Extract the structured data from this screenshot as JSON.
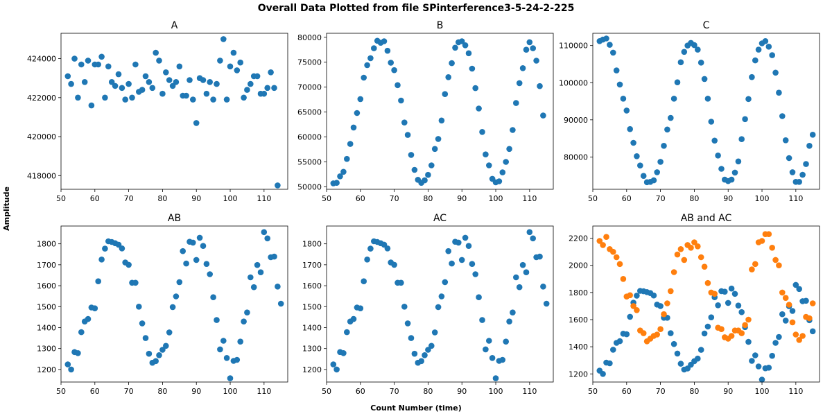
{
  "figure": {
    "suptitle": "Overall Data Plotted from file SPinterference3-5-24-2-225",
    "xlabel": "Count Number (time)",
    "ylabel": "Amplitude"
  },
  "colors": {
    "series1": "#1f77b4",
    "series2": "#ff7f0e"
  },
  "chart_data": [
    {
      "type": "scatter",
      "title": "A",
      "xlim": [
        50,
        117
      ],
      "ylim": [
        417300,
        425300
      ],
      "xticks": [
        50,
        60,
        70,
        80,
        90,
        100,
        110
      ],
      "yticks": [
        418000,
        420000,
        422000,
        424000
      ],
      "series": [
        {
          "color": "#1f77b4",
          "x": [
            52,
            53,
            54,
            55,
            56,
            57,
            58,
            59,
            60,
            61,
            62,
            63,
            64,
            65,
            66,
            67,
            68,
            69,
            70,
            71,
            72,
            73,
            74,
            75,
            76,
            77,
            78,
            79,
            80,
            81,
            82,
            83,
            84,
            85,
            86,
            87,
            88,
            89,
            90,
            91,
            92,
            93,
            94,
            95,
            96,
            97,
            98,
            99,
            100,
            101,
            102,
            103,
            104,
            105,
            106,
            107,
            108,
            109,
            110,
            111,
            112,
            113,
            114,
            115
          ],
          "y": [
            423100,
            422700,
            424000,
            422000,
            423700,
            422800,
            423900,
            421600,
            423700,
            423700,
            424100,
            422000,
            423600,
            422800,
            422600,
            423200,
            422500,
            421900,
            422700,
            422000,
            423700,
            422300,
            422400,
            423100,
            422800,
            422500,
            424300,
            423900,
            422200,
            423300,
            422900,
            422600,
            422800,
            423600,
            422100,
            422100,
            422900,
            421900,
            420700,
            423000,
            422900,
            422200,
            422800,
            421900,
            422700,
            423900,
            425000,
            421900,
            423600,
            424300,
            423400,
            423800,
            422000,
            422400,
            422700,
            423100,
            423100,
            422200,
            422200,
            422500,
            423300,
            422500,
            417500,
            null
          ]
        }
      ]
    },
    {
      "type": "scatter",
      "title": "B",
      "xlim": [
        50,
        117
      ],
      "ylim": [
        49500,
        80800
      ],
      "xticks": [
        50,
        60,
        70,
        80,
        90,
        100,
        110
      ],
      "yticks": [
        50000,
        55000,
        60000,
        65000,
        70000,
        75000,
        80000
      ],
      "series": [
        {
          "color": "#1f77b4",
          "x": [
            52,
            53,
            54,
            55,
            56,
            57,
            58,
            59,
            60,
            61,
            62,
            63,
            64,
            65,
            66,
            67,
            68,
            69,
            70,
            71,
            72,
            73,
            74,
            75,
            76,
            77,
            78,
            79,
            80,
            81,
            82,
            83,
            84,
            85,
            86,
            87,
            88,
            89,
            90,
            91,
            92,
            93,
            94,
            95,
            96,
            97,
            98,
            99,
            100,
            101,
            102,
            103,
            104,
            105,
            106,
            107,
            108,
            109,
            110,
            111,
            112,
            113,
            114,
            115
          ],
          "y": [
            50700,
            50800,
            52100,
            53000,
            55600,
            58600,
            61900,
            64800,
            67600,
            71900,
            74400,
            75800,
            77800,
            79300,
            78900,
            79200,
            77300,
            74900,
            73400,
            70400,
            67300,
            62900,
            60400,
            56400,
            53400,
            51400,
            50800,
            51300,
            52400,
            54300,
            57600,
            59600,
            63300,
            68600,
            72000,
            74800,
            77900,
            79000,
            79200,
            78400,
            76800,
            73700,
            69800,
            65700,
            61000,
            56500,
            54300,
            51600,
            50900,
            51100,
            52900,
            55000,
            57600,
            61400,
            66800,
            70800,
            73800,
            77500,
            79000,
            77800,
            75300,
            70200,
            64300,
            null
          ]
        }
      ]
    },
    {
      "type": "scatter",
      "title": "C",
      "xlim": [
        50,
        117
      ],
      "ylim": [
        71300,
        113300
      ],
      "xticks": [
        50,
        60,
        70,
        80,
        90,
        100,
        110
      ],
      "yticks": [
        80000,
        90000,
        100000,
        110000
      ],
      "series": [
        {
          "color": "#1f77b4",
          "x": [
            52,
            53,
            54,
            55,
            56,
            57,
            58,
            59,
            60,
            61,
            62,
            63,
            64,
            65,
            66,
            67,
            68,
            69,
            70,
            71,
            72,
            73,
            74,
            75,
            76,
            77,
            78,
            79,
            80,
            81,
            82,
            83,
            84,
            85,
            86,
            87,
            88,
            89,
            90,
            91,
            92,
            93,
            94,
            95,
            96,
            97,
            98,
            99,
            100,
            101,
            102,
            103,
            104,
            105,
            106,
            107,
            108,
            109,
            110,
            111,
            112,
            113,
            114,
            115
          ],
          "y": [
            111200,
            111600,
            111900,
            110200,
            108100,
            103300,
            99500,
            95700,
            92500,
            87500,
            83800,
            80200,
            77700,
            74900,
            73200,
            73300,
            73700,
            75900,
            78700,
            83000,
            87400,
            90500,
            95700,
            100100,
            105500,
            108300,
            110000,
            110700,
            110100,
            108900,
            105400,
            101000,
            95700,
            89500,
            84400,
            80400,
            76800,
            73900,
            73500,
            73900,
            75800,
            78800,
            84800,
            90200,
            95600,
            101500,
            106000,
            108900,
            110600,
            111200,
            109700,
            107400,
            102700,
            97300,
            91000,
            84500,
            79700,
            75900,
            73300,
            73300,
            75200,
            78100,
            83000,
            86000
          ]
        }
      ]
    },
    {
      "type": "scatter",
      "title": "AB",
      "xlim": [
        50,
        117
      ],
      "ylim": [
        1140,
        1885
      ],
      "xticks": [
        50,
        60,
        70,
        80,
        90,
        100,
        110
      ],
      "yticks": [
        1200,
        1300,
        1400,
        1500,
        1600,
        1700,
        1800
      ],
      "series": [
        {
          "color": "#1f77b4",
          "x": [
            52,
            53,
            54,
            55,
            56,
            57,
            58,
            59,
            60,
            61,
            62,
            63,
            64,
            65,
            66,
            67,
            68,
            69,
            70,
            71,
            72,
            73,
            74,
            75,
            76,
            77,
            78,
            79,
            80,
            81,
            82,
            83,
            84,
            85,
            86,
            87,
            88,
            89,
            90,
            91,
            92,
            93,
            94,
            95,
            96,
            97,
            98,
            99,
            100,
            101,
            102,
            103,
            104,
            105,
            106,
            107,
            108,
            109,
            110,
            111,
            112,
            113,
            114,
            115
          ],
          "y": [
            1224,
            1200,
            1283,
            1278,
            1378,
            1429,
            1441,
            1496,
            1492,
            1621,
            1725,
            1777,
            1812,
            1809,
            1803,
            1796,
            1778,
            1711,
            1700,
            1614,
            1614,
            1500,
            1420,
            1350,
            1275,
            1232,
            1240,
            1268,
            1294,
            1313,
            1377,
            1498,
            1549,
            1617,
            1765,
            1706,
            1810,
            1806,
            1723,
            1829,
            1790,
            1704,
            1655,
            1545,
            1436,
            1296,
            1337,
            1255,
            1158,
            1241,
            1246,
            1333,
            1429,
            1472,
            1640,
            1593,
            1699,
            1664,
            1856,
            1826,
            1736,
            1739,
            1596,
            1514
          ]
        }
      ]
    },
    {
      "type": "scatter",
      "title": "AC",
      "xlim": [
        50,
        117
      ],
      "ylim": [
        1140,
        1885
      ],
      "xticks": [
        50,
        60,
        70,
        80,
        90,
        100,
        110
      ],
      "yticks": [
        1200,
        1300,
        1400,
        1500,
        1600,
        1700,
        1800
      ],
      "series": [
        {
          "color": "#1f77b4",
          "x": [
            52,
            53,
            54,
            55,
            56,
            57,
            58,
            59,
            60,
            61,
            62,
            63,
            64,
            65,
            66,
            67,
            68,
            69,
            70,
            71,
            72,
            73,
            74,
            75,
            76,
            77,
            78,
            79,
            80,
            81,
            82,
            83,
            84,
            85,
            86,
            87,
            88,
            89,
            90,
            91,
            92,
            93,
            94,
            95,
            96,
            97,
            98,
            99,
            100,
            101,
            102,
            103,
            104,
            105,
            106,
            107,
            108,
            109,
            110,
            111,
            112,
            113,
            114,
            115
          ],
          "y": [
            1224,
            1200,
            1283,
            1278,
            1378,
            1429,
            1441,
            1496,
            1492,
            1621,
            1725,
            1777,
            1812,
            1809,
            1803,
            1796,
            1778,
            1711,
            1700,
            1614,
            1614,
            1500,
            1420,
            1350,
            1275,
            1232,
            1240,
            1268,
            1294,
            1313,
            1377,
            1498,
            1549,
            1617,
            1765,
            1706,
            1810,
            1806,
            1723,
            1829,
            1790,
            1704,
            1655,
            1545,
            1436,
            1296,
            1337,
            1255,
            1158,
            1241,
            1246,
            1333,
            1429,
            1472,
            1640,
            1593,
            1699,
            1664,
            1856,
            1826,
            1736,
            1739,
            1596,
            1514
          ]
        }
      ]
    },
    {
      "type": "scatter",
      "title": "AB and AC",
      "xlim": [
        50,
        117
      ],
      "ylim": [
        1140,
        2290
      ],
      "xticks": [
        50,
        60,
        70,
        80,
        90,
        100,
        110
      ],
      "yticks": [
        1200,
        1400,
        1600,
        1800,
        2000,
        2200
      ],
      "series": [
        {
          "color": "#1f77b4",
          "x": [
            52,
            53,
            54,
            55,
            56,
            57,
            58,
            59,
            60,
            61,
            62,
            63,
            64,
            65,
            66,
            67,
            68,
            69,
            70,
            71,
            72,
            73,
            74,
            75,
            76,
            77,
            78,
            79,
            80,
            81,
            82,
            83,
            84,
            85,
            86,
            87,
            88,
            89,
            90,
            91,
            92,
            93,
            94,
            95,
            96,
            97,
            98,
            99,
            100,
            101,
            102,
            103,
            104,
            105,
            106,
            107,
            108,
            109,
            110,
            111,
            112,
            113,
            114,
            115
          ],
          "y": [
            1224,
            1200,
            1283,
            1278,
            1378,
            1429,
            1441,
            1496,
            1492,
            1621,
            1725,
            1777,
            1812,
            1809,
            1803,
            1796,
            1778,
            1711,
            1700,
            1614,
            1614,
            1500,
            1420,
            1350,
            1275,
            1232,
            1240,
            1268,
            1294,
            1313,
            1377,
            1498,
            1549,
            1617,
            1765,
            1706,
            1810,
            1806,
            1723,
            1829,
            1790,
            1704,
            1655,
            1545,
            1436,
            1296,
            1337,
            1255,
            1158,
            1241,
            1246,
            1333,
            1429,
            1472,
            1640,
            1593,
            1699,
            1664,
            1856,
            1826,
            1736,
            1739,
            1596,
            1514
          ]
        },
        {
          "color": "#ff7f0e",
          "x": [
            52,
            53,
            54,
            55,
            56,
            57,
            58,
            59,
            60,
            61,
            62,
            63,
            64,
            65,
            66,
            67,
            68,
            69,
            70,
            71,
            72,
            73,
            74,
            75,
            76,
            77,
            78,
            79,
            80,
            81,
            82,
            83,
            84,
            85,
            86,
            87,
            88,
            89,
            90,
            91,
            92,
            93,
            94,
            95,
            96,
            97,
            98,
            99,
            100,
            101,
            102,
            103,
            104,
            105,
            106,
            107,
            108,
            109,
            110,
            111,
            112,
            113,
            114,
            115
          ],
          "y": [
            2180,
            2150,
            2210,
            2120,
            2100,
            2060,
            2010,
            1900,
            1770,
            1780,
            1700,
            1670,
            1520,
            1500,
            1440,
            1460,
            1480,
            1490,
            1530,
            1640,
            1720,
            1810,
            1950,
            2080,
            2120,
            2040,
            2150,
            2130,
            2170,
            2140,
            2060,
            1990,
            1870,
            1800,
            1790,
            1540,
            1530,
            1470,
            1460,
            1480,
            1520,
            1520,
            1500,
            1560,
            1600,
            1970,
            2010,
            2170,
            2180,
            2230,
            2230,
            2130,
            2040,
            2000,
            1800,
            1760,
            1710,
            1580,
            1490,
            1450,
            1480,
            1620,
            1610,
            1720
          ]
        }
      ]
    }
  ]
}
